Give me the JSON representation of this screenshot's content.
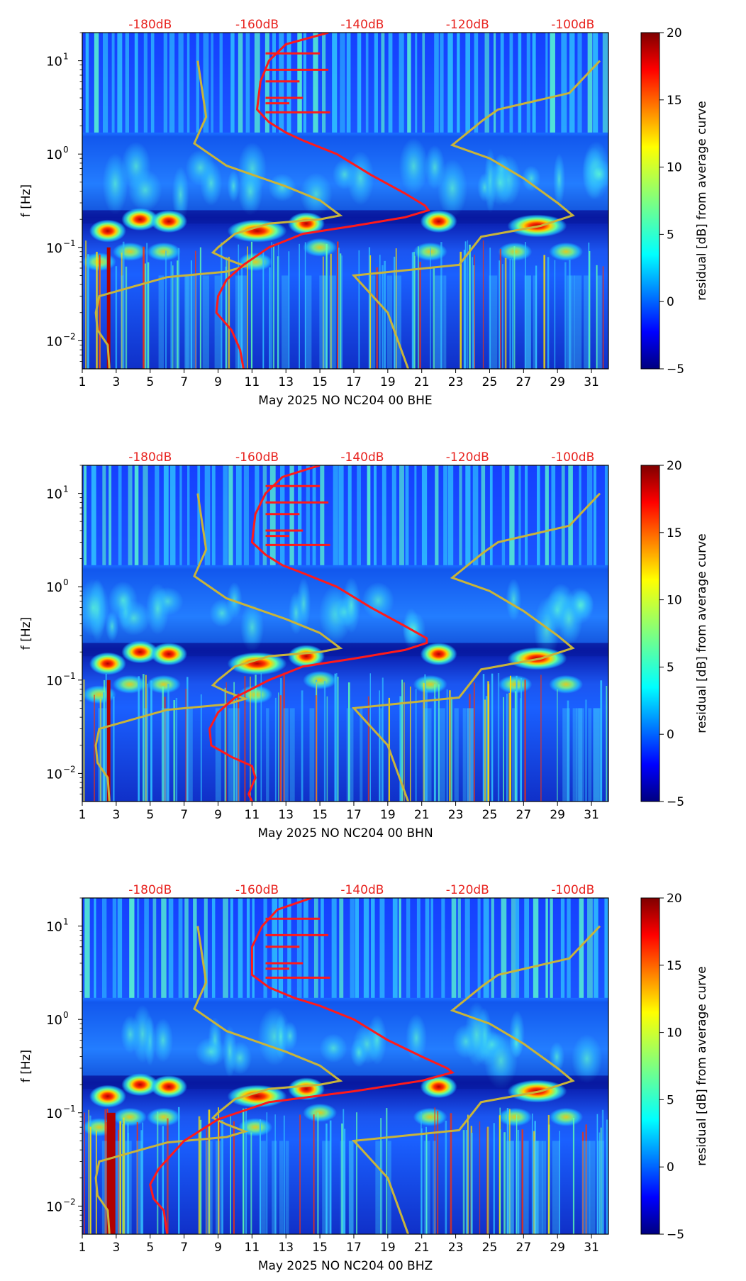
{
  "figure": {
    "panels": [
      {
        "xlabel": "May 2025 NO NC204 00 BHE"
      },
      {
        "xlabel": "May 2025 NO NC204 00 BHN"
      },
      {
        "xlabel": "May 2025 NO NC204 00 BHZ"
      }
    ],
    "ylabel": "f [Hz]",
    "colorbar": {
      "label": "residual [dB] from average curve",
      "ticks": [
        "20",
        "15",
        "10",
        "5",
        "0",
        "−5"
      ],
      "range": [
        -5,
        20
      ]
    },
    "x_tick_labels": [
      "1",
      "3",
      "5",
      "7",
      "9",
      "11",
      "13",
      "15",
      "17",
      "19",
      "21",
      "23",
      "25",
      "27",
      "29",
      "31"
    ],
    "y_tick_labels": [
      "10",
      "10",
      "10",
      "10"
    ],
    "y_tick_exponents": [
      "1",
      "0",
      "−1",
      "−2"
    ],
    "top_db_labels": [
      "-180dB",
      "-160dB",
      "-140dB",
      "-120dB",
      "-100dB"
    ],
    "colors": {
      "dB_curve": "#ff1a1a",
      "reference_curves": "#c8b43a",
      "top_label": "#e8231f"
    }
  },
  "chart_data": [
    {
      "type": "heatmap",
      "xlabel": "May 2025 NO NC204 00 BHE",
      "ylabel": "f [Hz]",
      "x_range": [
        1,
        32
      ],
      "y_range_hz": [
        0.005,
        20
      ],
      "y_scale": "log",
      "colorbar_label": "residual [dB] from average curve",
      "color_range_db": [
        -5,
        20
      ],
      "top_axis_label": "dB",
      "top_axis_ticks_db": [
        -180,
        -160,
        -140,
        -120,
        -100
      ],
      "top_axis_x_positions_day": [
        5.0,
        11.3,
        17.5,
        23.7,
        29.9
      ],
      "overlay_red_curve": {
        "name": "-dB",
        "points_x_day_y_hz": [
          [
            15.5,
            20
          ],
          [
            13.0,
            15
          ],
          [
            12.0,
            10
          ],
          [
            11.5,
            6
          ],
          [
            11.3,
            3
          ],
          [
            12.0,
            2.2
          ],
          [
            13.0,
            1.7
          ],
          [
            14.0,
            1.4
          ],
          [
            16.0,
            1.0
          ],
          [
            18.0,
            0.6
          ],
          [
            20.0,
            0.38
          ],
          [
            21.2,
            0.28
          ],
          [
            21.4,
            0.25
          ],
          [
            20.0,
            0.21
          ],
          [
            17.0,
            0.17
          ],
          [
            14.0,
            0.14
          ],
          [
            12.0,
            0.1
          ],
          [
            10.5,
            0.065
          ],
          [
            9.5,
            0.045
          ],
          [
            9.0,
            0.03
          ],
          [
            8.9,
            0.02
          ],
          [
            9.8,
            0.013
          ],
          [
            10.3,
            0.008
          ],
          [
            10.5,
            0.005
          ]
        ]
      },
      "overlay_yellow_curves": [
        {
          "points_x_day_y_hz": [
            [
              7.8,
              10
            ],
            [
              8.3,
              2.5
            ],
            [
              7.6,
              1.3
            ],
            [
              9.5,
              0.75
            ],
            [
              13.0,
              0.45
            ],
            [
              15.0,
              0.32
            ],
            [
              16.2,
              0.22
            ],
            [
              15.0,
              0.2
            ],
            [
              12.0,
              0.18
            ],
            [
              10.0,
              0.14
            ],
            [
              9.0,
              0.1
            ],
            [
              8.7,
              0.088
            ],
            [
              9.5,
              0.075
            ],
            [
              10.6,
              0.063
            ],
            [
              9.5,
              0.055
            ],
            [
              6.0,
              0.048
            ],
            [
              4.0,
              0.038
            ],
            [
              2.0,
              0.03
            ],
            [
              1.8,
              0.02
            ],
            [
              1.9,
              0.013
            ],
            [
              2.5,
              0.009
            ],
            [
              2.6,
              0.005
            ]
          ]
        },
        {
          "points_x_day_y_hz": [
            [
              31.5,
              10
            ],
            [
              29.7,
              4.5
            ],
            [
              25.5,
              3.0
            ],
            [
              24.6,
              2.3
            ],
            [
              22.8,
              1.25
            ],
            [
              25.0,
              0.9
            ],
            [
              27.0,
              0.55
            ],
            [
              29.0,
              0.3
            ],
            [
              29.9,
              0.22
            ],
            [
              28.0,
              0.17
            ],
            [
              24.5,
              0.13
            ],
            [
              23.2,
              0.065
            ],
            [
              17.0,
              0.05
            ],
            [
              19.0,
              0.02
            ],
            [
              20.2,
              0.005
            ]
          ]
        }
      ]
    },
    {
      "type": "heatmap",
      "xlabel": "May 2025 NO NC204 00 BHN",
      "ylabel": "f [Hz]",
      "x_range": [
        1,
        32
      ],
      "y_range_hz": [
        0.005,
        20
      ],
      "y_scale": "log",
      "colorbar_label": "residual [dB] from average curve",
      "color_range_db": [
        -5,
        20
      ],
      "top_axis_label": "dB",
      "top_axis_ticks_db": [
        -180,
        -160,
        -140,
        -120,
        -100
      ],
      "top_axis_x_positions_day": [
        5.0,
        11.3,
        17.5,
        23.7,
        29.9
      ],
      "overlay_red_curve": {
        "name": "-dB",
        "points_x_day_y_hz": [
          [
            15.0,
            20
          ],
          [
            12.8,
            15
          ],
          [
            11.8,
            10
          ],
          [
            11.2,
            6
          ],
          [
            11.0,
            3
          ],
          [
            11.8,
            2.2
          ],
          [
            12.8,
            1.7
          ],
          [
            14.0,
            1.4
          ],
          [
            16.0,
            1.0
          ],
          [
            18.0,
            0.6
          ],
          [
            20.0,
            0.38
          ],
          [
            21.3,
            0.28
          ],
          [
            21.3,
            0.25
          ],
          [
            20.0,
            0.21
          ],
          [
            17.0,
            0.17
          ],
          [
            14.0,
            0.14
          ],
          [
            12.0,
            0.1
          ],
          [
            10.0,
            0.065
          ],
          [
            9.0,
            0.045
          ],
          [
            8.5,
            0.03
          ],
          [
            8.6,
            0.02
          ],
          [
            9.8,
            0.015
          ],
          [
            11.0,
            0.012
          ],
          [
            11.2,
            0.009
          ],
          [
            10.8,
            0.006
          ],
          [
            11.0,
            0.005
          ]
        ]
      },
      "overlay_yellow_curves": [
        {
          "points_x_day_y_hz": [
            [
              7.8,
              10
            ],
            [
              8.3,
              2.5
            ],
            [
              7.6,
              1.3
            ],
            [
              9.5,
              0.75
            ],
            [
              13.0,
              0.45
            ],
            [
              15.0,
              0.32
            ],
            [
              16.2,
              0.22
            ],
            [
              15.0,
              0.2
            ],
            [
              12.0,
              0.18
            ],
            [
              10.0,
              0.14
            ],
            [
              9.0,
              0.1
            ],
            [
              8.7,
              0.088
            ],
            [
              9.5,
              0.075
            ],
            [
              10.6,
              0.063
            ],
            [
              9.5,
              0.055
            ],
            [
              6.0,
              0.048
            ],
            [
              4.0,
              0.038
            ],
            [
              2.0,
              0.03
            ],
            [
              1.8,
              0.02
            ],
            [
              1.9,
              0.013
            ],
            [
              2.5,
              0.009
            ],
            [
              2.6,
              0.005
            ]
          ]
        },
        {
          "points_x_day_y_hz": [
            [
              31.5,
              10
            ],
            [
              29.7,
              4.5
            ],
            [
              25.5,
              3.0
            ],
            [
              24.6,
              2.3
            ],
            [
              22.8,
              1.25
            ],
            [
              25.0,
              0.9
            ],
            [
              27.0,
              0.55
            ],
            [
              29.0,
              0.3
            ],
            [
              29.9,
              0.22
            ],
            [
              28.0,
              0.17
            ],
            [
              24.5,
              0.13
            ],
            [
              23.2,
              0.065
            ],
            [
              17.0,
              0.05
            ],
            [
              19.0,
              0.02
            ],
            [
              20.2,
              0.005
            ]
          ]
        }
      ]
    },
    {
      "type": "heatmap",
      "xlabel": "May 2025 NO NC204 00 BHZ",
      "ylabel": "f [Hz]",
      "x_range": [
        1,
        32
      ],
      "y_range_hz": [
        0.005,
        20
      ],
      "y_scale": "log",
      "colorbar_label": "residual [dB] from average curve",
      "color_range_db": [
        -5,
        20
      ],
      "top_axis_label": "dB",
      "top_axis_ticks_db": [
        -180,
        -160,
        -140,
        -120,
        -100
      ],
      "top_axis_x_positions_day": [
        5.0,
        11.3,
        17.5,
        23.7,
        29.9
      ],
      "overlay_red_curve": {
        "name": "-dB",
        "points_x_day_y_hz": [
          [
            14.5,
            20
          ],
          [
            12.5,
            15
          ],
          [
            11.6,
            10
          ],
          [
            11.0,
            6
          ],
          [
            11.0,
            3
          ],
          [
            12.0,
            2.2
          ],
          [
            13.5,
            1.7
          ],
          [
            15.0,
            1.4
          ],
          [
            17.0,
            1.0
          ],
          [
            19.0,
            0.6
          ],
          [
            21.0,
            0.4
          ],
          [
            22.5,
            0.3
          ],
          [
            22.8,
            0.27
          ],
          [
            21.0,
            0.22
          ],
          [
            17.0,
            0.17
          ],
          [
            12.0,
            0.13
          ],
          [
            9.0,
            0.085
          ],
          [
            7.0,
            0.05
          ],
          [
            5.5,
            0.025
          ],
          [
            5.0,
            0.017
          ],
          [
            5.2,
            0.012
          ],
          [
            5.8,
            0.009
          ],
          [
            6.0,
            0.005
          ]
        ]
      },
      "overlay_yellow_curves": [
        {
          "points_x_day_y_hz": [
            [
              7.8,
              10
            ],
            [
              8.3,
              2.5
            ],
            [
              7.6,
              1.3
            ],
            [
              9.5,
              0.75
            ],
            [
              13.0,
              0.45
            ],
            [
              15.0,
              0.32
            ],
            [
              16.2,
              0.22
            ],
            [
              15.0,
              0.2
            ],
            [
              12.0,
              0.18
            ],
            [
              10.0,
              0.14
            ],
            [
              9.0,
              0.1
            ],
            [
              8.7,
              0.088
            ],
            [
              9.5,
              0.075
            ],
            [
              10.6,
              0.063
            ],
            [
              9.5,
              0.055
            ],
            [
              6.0,
              0.048
            ],
            [
              4.0,
              0.038
            ],
            [
              2.0,
              0.03
            ],
            [
              1.8,
              0.02
            ],
            [
              1.9,
              0.013
            ],
            [
              2.5,
              0.009
            ],
            [
              2.6,
              0.005
            ]
          ]
        },
        {
          "points_x_day_y_hz": [
            [
              31.5,
              10
            ],
            [
              29.7,
              4.5
            ],
            [
              25.5,
              3.0
            ],
            [
              24.6,
              2.3
            ],
            [
              22.8,
              1.25
            ],
            [
              25.0,
              0.9
            ],
            [
              27.0,
              0.55
            ],
            [
              29.0,
              0.3
            ],
            [
              29.9,
              0.22
            ],
            [
              28.0,
              0.17
            ],
            [
              24.5,
              0.13
            ],
            [
              23.2,
              0.065
            ],
            [
              17.0,
              0.05
            ],
            [
              19.0,
              0.02
            ],
            [
              20.2,
              0.005
            ]
          ]
        }
      ]
    }
  ]
}
